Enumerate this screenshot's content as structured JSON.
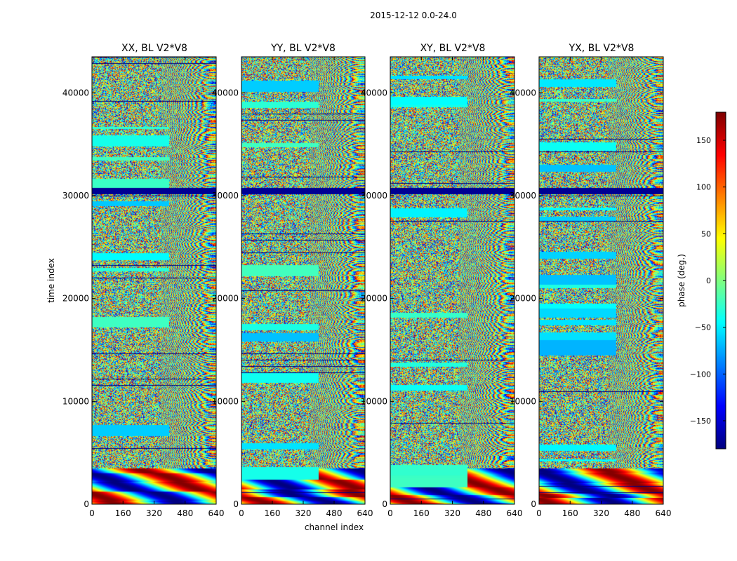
{
  "chart_data": {
    "type": "heatmap",
    "title": "2015-12-12 0.0-24.0",
    "xlabel": "channel index",
    "ylabel": "time index",
    "xlim": [
      0,
      640
    ],
    "ylim": [
      0,
      43500
    ],
    "x_ticks": [
      0,
      160,
      320,
      480,
      640
    ],
    "y_ticks": [
      0,
      10000,
      20000,
      30000,
      40000
    ],
    "panels": [
      {
        "title": "XX, BL V2*V8",
        "pol": "XX"
      },
      {
        "title": "YY, BL V2*V8",
        "pol": "YY"
      },
      {
        "title": "XY, BL V2*V8",
        "pol": "XY"
      },
      {
        "title": "YX, BL V2*V8",
        "pol": "YX"
      }
    ],
    "colorbar": {
      "label": "phase (deg.)",
      "range": [
        -180,
        180
      ],
      "ticks": [
        150,
        100,
        50,
        0,
        -50,
        -100,
        -150
      ],
      "colormap": "jet"
    },
    "flagged_time_ranges": [
      [
        30200,
        30750
      ]
    ]
  }
}
